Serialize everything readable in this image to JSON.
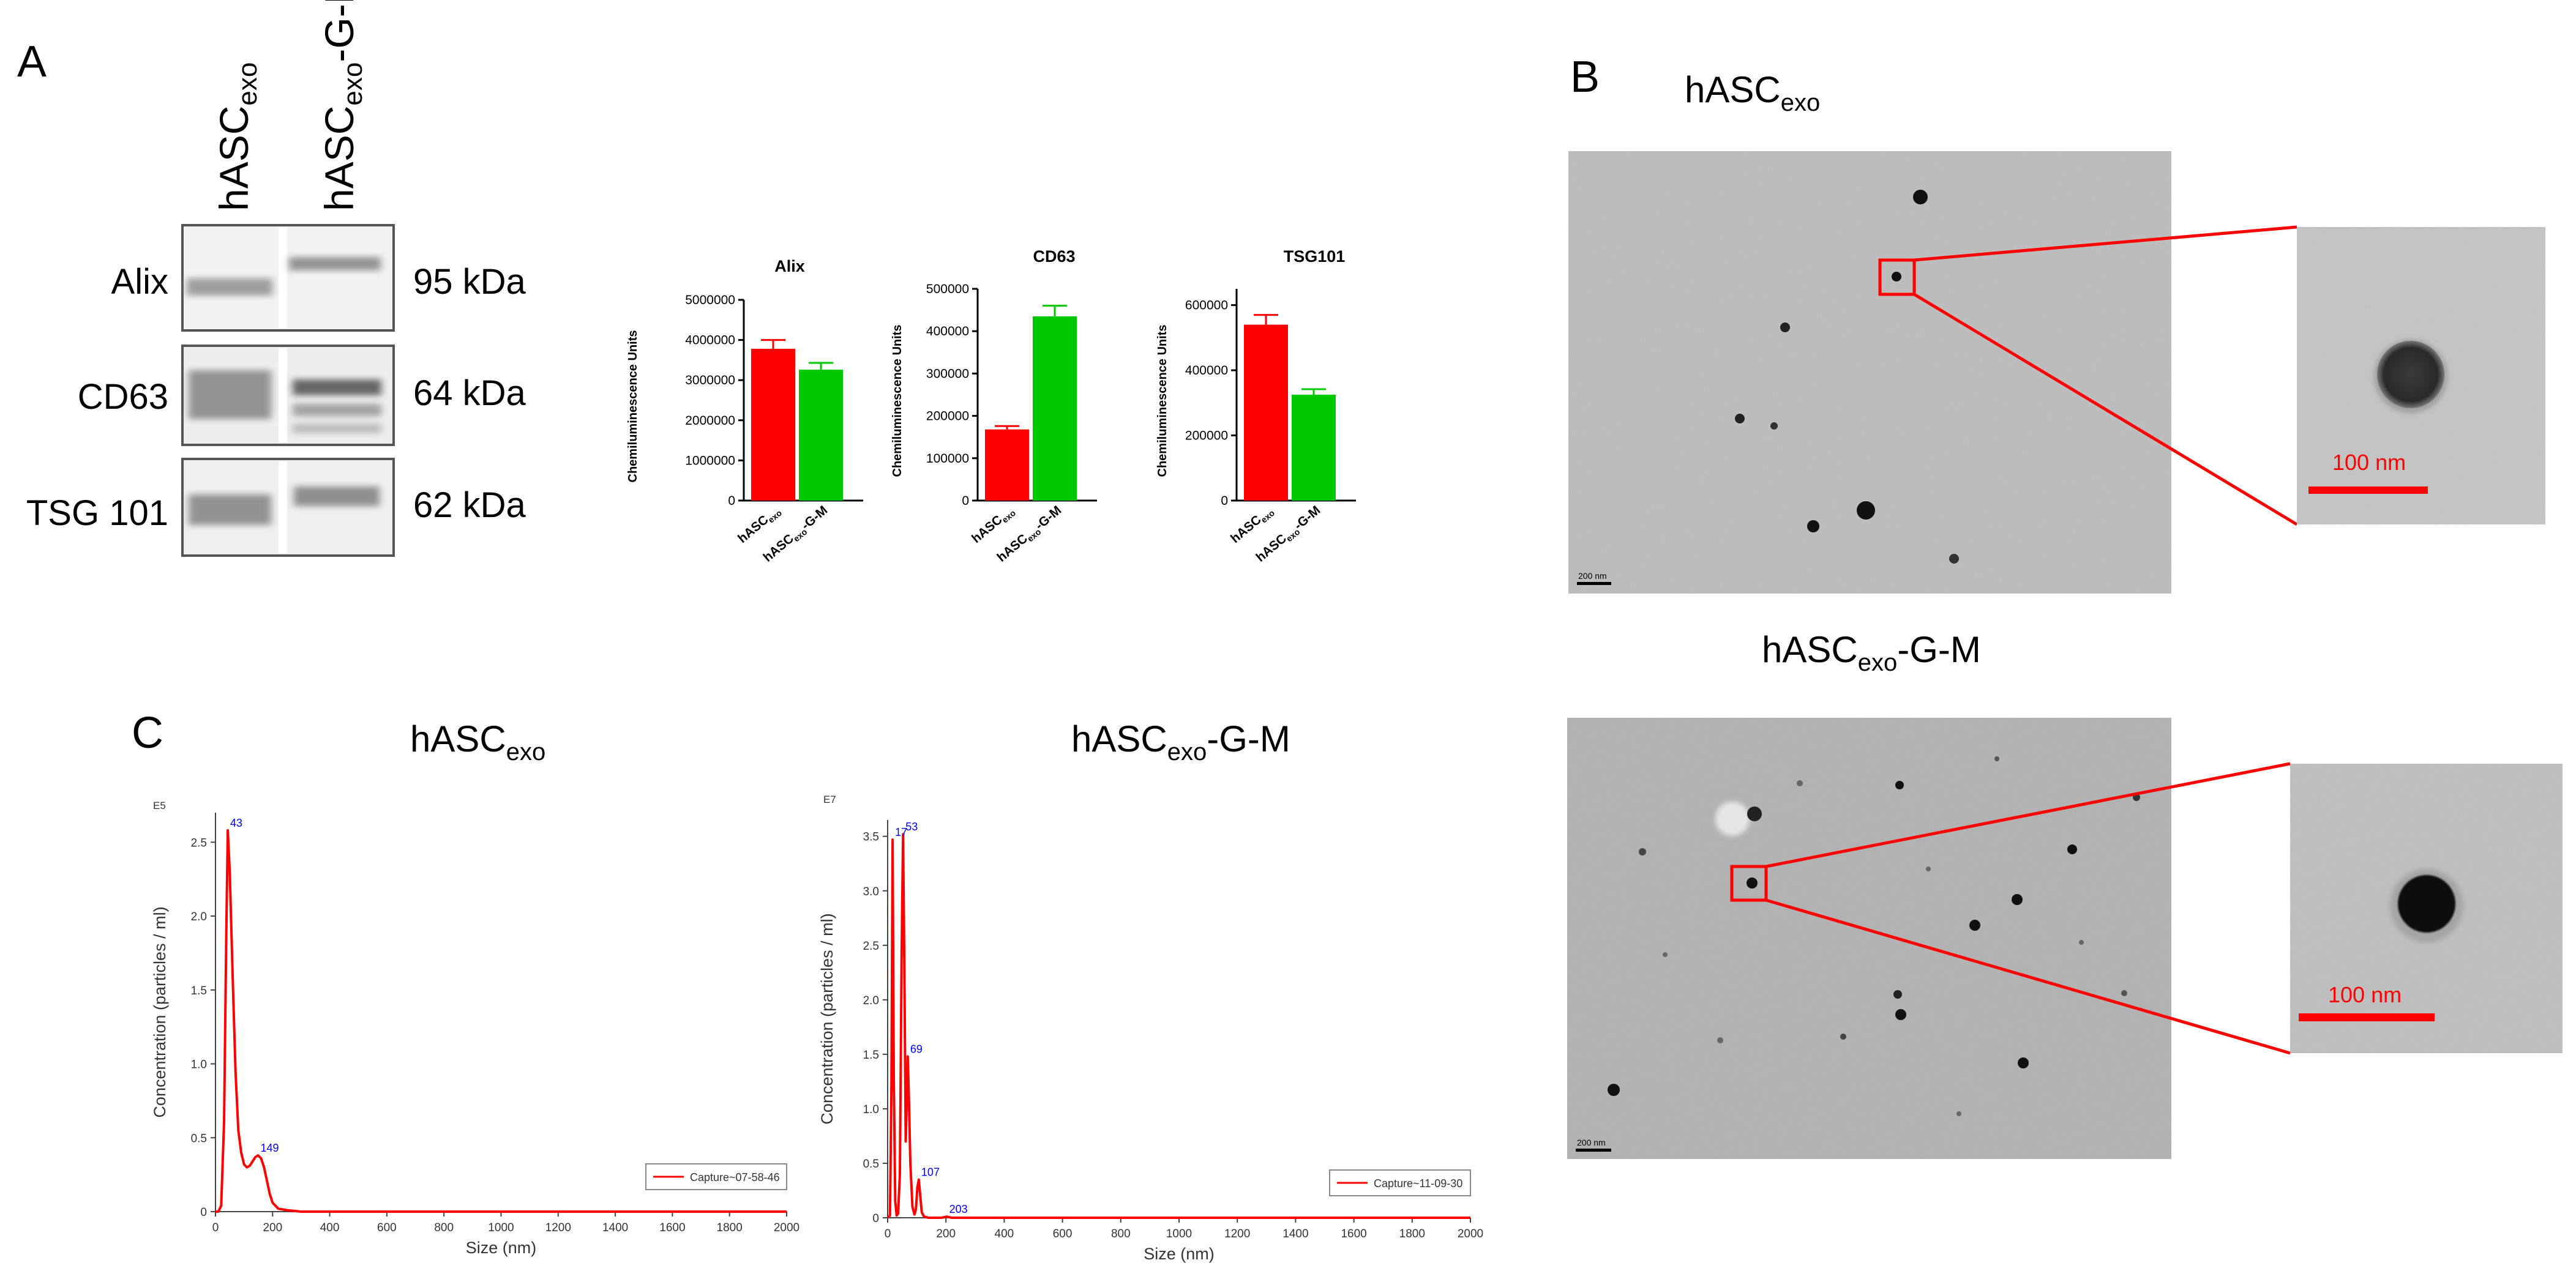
{
  "panel_letters": {
    "a": "A",
    "b": "B",
    "c": "C"
  },
  "sample_names": {
    "main": "hASC",
    "sub": "exo",
    "suffix": "-G-M"
  },
  "western_blot": {
    "proteins": [
      "Alix",
      "CD63",
      "TSG 101"
    ],
    "weights": [
      "95 kDa",
      "64 kDa",
      "62 kDa"
    ]
  },
  "colors": {
    "group1": "#ff0000",
    "group2": "#00c800",
    "scale_bar": "#ff0000",
    "roi_box": "#ff0000",
    "nta_line": "#ff0000",
    "peak_label": "#0000ee"
  },
  "tem": {
    "scale_bar_small": "200 nm",
    "scale_bar_zoom": "100 nm"
  },
  "chart_data": [
    {
      "type": "bar",
      "title": "Alix",
      "ylabel": "Chemiluminescence Units",
      "ylim": [
        0,
        5000000
      ],
      "yticks": [
        "0",
        "1000000",
        "2000000",
        "3000000",
        "4000000",
        "5000000"
      ],
      "categories": [
        "hASC exo",
        "hASC exo-G-M"
      ],
      "values": [
        3780000,
        3260000
      ],
      "errors": [
        220000,
        170000
      ]
    },
    {
      "type": "bar",
      "title": "CD63",
      "ylabel": "Chemiluminescence Units",
      "ylim": [
        0,
        500000
      ],
      "yticks": [
        "0",
        "100000",
        "200000",
        "300000",
        "400000",
        "500000"
      ],
      "categories": [
        "hASC exo",
        "hASC exo-G-M"
      ],
      "values": [
        168000,
        435000
      ],
      "errors": [
        8000,
        25000
      ]
    },
    {
      "type": "bar",
      "title": "TSG101",
      "ylabel": "Chemiluminescence Units",
      "ylim": [
        0,
        650000
      ],
      "yticks": [
        "0",
        "200000",
        "400000",
        "600000"
      ],
      "categories": [
        "hASC exo",
        "hASC exo-G-M"
      ],
      "values": [
        540000,
        325000
      ],
      "errors": [
        30000,
        17000
      ]
    },
    {
      "type": "line",
      "exponent": "E5",
      "xlabel": "Size (nm)",
      "ylabel": "Concentration (particles / ml)",
      "xlim": [
        0,
        2000
      ],
      "ylim": [
        0,
        2.7
      ],
      "xticks": [
        0,
        200,
        400,
        600,
        800,
        1000,
        1200,
        1400,
        1600,
        1800,
        2000
      ],
      "yticks": [
        0,
        0.5,
        1.0,
        1.5,
        2.0,
        2.5
      ],
      "ytick_labels": [
        "0",
        "0.5",
        "1.0",
        "1.5",
        "2.0",
        "2.5"
      ],
      "legend": "Capture~07-58-46",
      "peaks": [
        {
          "x": 43,
          "y": 2.58,
          "label": "43"
        },
        {
          "x": 149,
          "y": 0.38,
          "label": "149"
        }
      ],
      "series": [
        {
          "x": [
            0,
            10,
            20,
            30,
            38,
            43,
            50,
            60,
            70,
            80,
            90,
            100,
            110,
            120,
            130,
            140,
            149,
            160,
            170,
            180,
            190,
            200,
            220,
            250,
            300,
            400,
            600,
            1000,
            1500,
            2000
          ],
          "y": [
            0,
            0,
            0.04,
            0.6,
            1.9,
            2.58,
            2.3,
            1.6,
            0.95,
            0.55,
            0.4,
            0.32,
            0.3,
            0.31,
            0.34,
            0.37,
            0.38,
            0.36,
            0.3,
            0.21,
            0.12,
            0.06,
            0.02,
            0.01,
            0,
            0,
            0,
            0,
            0,
            0
          ]
        }
      ]
    },
    {
      "type": "line",
      "exponent": "E7",
      "xlabel": "Size (nm)",
      "ylabel": "Concentration (particles / ml)",
      "xlim": [
        0,
        2000
      ],
      "ylim": [
        0,
        3.65
      ],
      "xticks": [
        0,
        200,
        400,
        600,
        800,
        1000,
        1200,
        1400,
        1600,
        1800,
        2000
      ],
      "yticks": [
        0,
        0.5,
        1.0,
        1.5,
        2.0,
        2.5,
        3.0,
        3.5
      ],
      "ytick_labels": [
        "0",
        "0.5",
        "1.0",
        "1.5",
        "2.0",
        "2.5",
        "3.0",
        "3.5"
      ],
      "legend": "Capture~11-09-30",
      "peaks": [
        {
          "x": 17,
          "y": 3.47,
          "label": "17"
        },
        {
          "x": 53,
          "y": 3.52,
          "label": "53"
        },
        {
          "x": 69,
          "y": 1.48,
          "label": "69"
        },
        {
          "x": 107,
          "y": 0.35,
          "label": "107"
        },
        {
          "x": 203,
          "y": 0.01,
          "label": "203"
        }
      ],
      "series": [
        {
          "x": [
            0,
            8,
            13,
            17,
            21,
            26,
            31,
            36,
            42,
            48,
            53,
            58,
            62,
            66,
            69,
            73,
            78,
            85,
            92,
            97,
            102,
            107,
            112,
            117,
            125,
            140,
            160,
            185,
            203,
            220,
            300,
            600,
            1000,
            2000
          ],
          "y": [
            0,
            0.02,
            1.2,
            3.47,
            1.3,
            0.15,
            0.02,
            0.04,
            0.4,
            2.4,
            3.52,
            2.1,
            0.7,
            1.1,
            1.48,
            1.1,
            0.5,
            0.1,
            0.03,
            0.08,
            0.28,
            0.35,
            0.2,
            0.05,
            0.01,
            0,
            0,
            0,
            0.01,
            0,
            0,
            0,
            0,
            0
          ]
        }
      ]
    }
  ]
}
